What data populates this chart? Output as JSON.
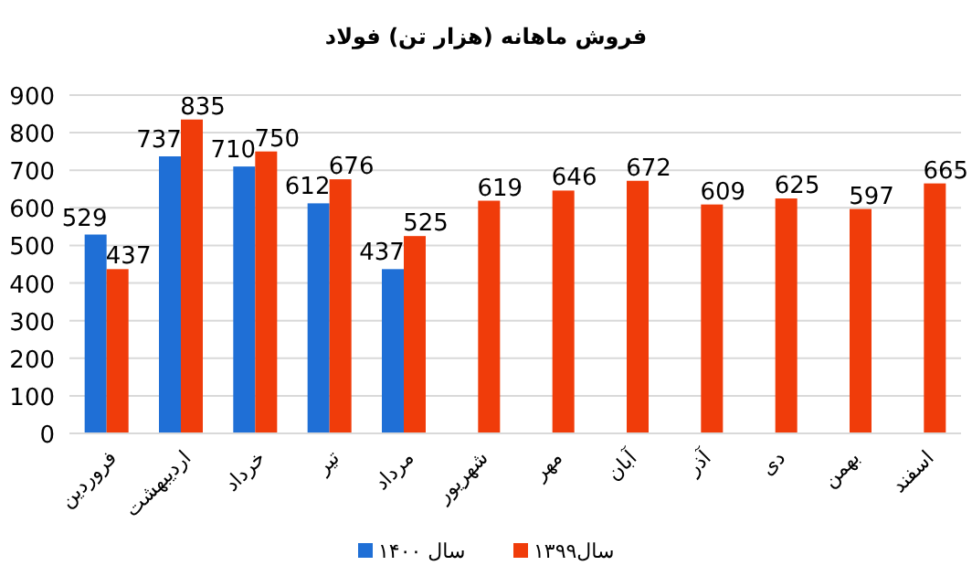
{
  "chart_data": {
    "type": "bar",
    "title": "فروش ماهانه (هزار تن) فولاد",
    "categories": [
      "فروردین",
      "اردیبهشت",
      "خرداد",
      "تیر",
      "مرداد",
      "شهریور",
      "مهر",
      "آبان",
      "آذر",
      "دی",
      "بهمن",
      "اسفند"
    ],
    "series": [
      {
        "name": "سال ۱۴۰۰",
        "color": "#1f6fd6",
        "values": [
          529,
          737,
          710,
          612,
          437,
          null,
          null,
          null,
          null,
          null,
          null,
          null
        ]
      },
      {
        "name": "سال۱۳۹۹",
        "color": "#f03c0a",
        "values": [
          437,
          835,
          750,
          676,
          525,
          619,
          646,
          672,
          609,
          625,
          597,
          665
        ]
      }
    ],
    "ylim": [
      0,
      900
    ],
    "yticks": [
      0,
      100,
      200,
      300,
      400,
      500,
      600,
      700,
      800,
      900
    ],
    "grid": "y",
    "legend": "bottom",
    "data_labels": true
  }
}
